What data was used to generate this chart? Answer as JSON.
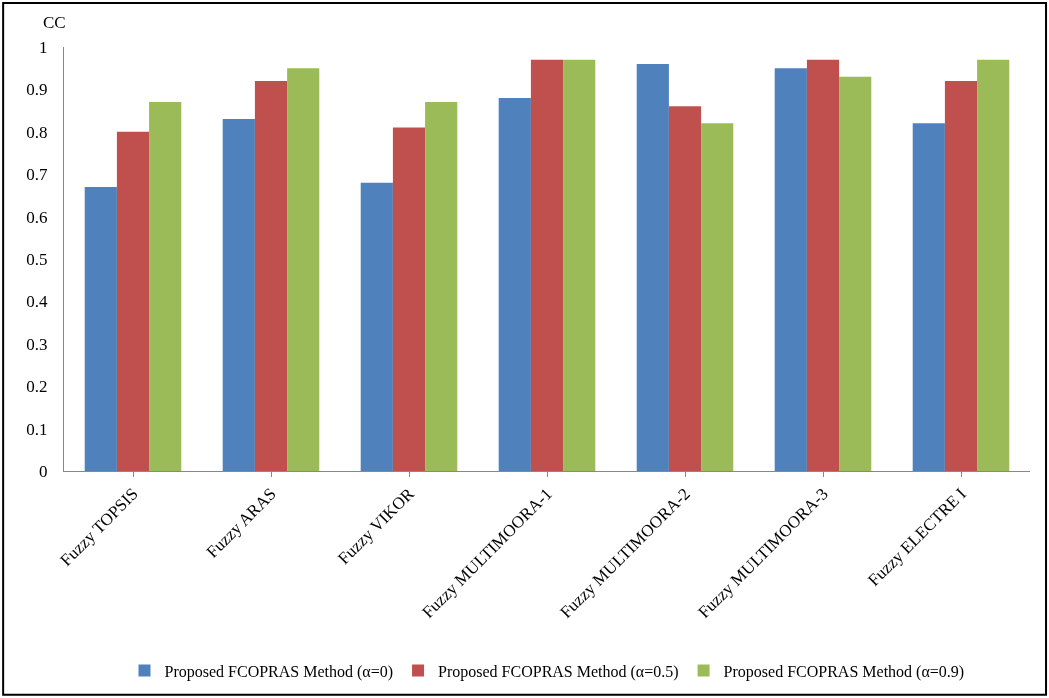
{
  "chart_data": {
    "type": "bar",
    "ylabel": "CC",
    "categories": [
      "Fuzzy TOPSIS",
      "Fuzzy ARAS",
      "Fuzzy VIKOR",
      "Fuzzy MULTIMOORA-1",
      "Fuzzy MULTIMOORA-2",
      "Fuzzy MULTIMOORA-3",
      "Fuzzy ELECTRE I"
    ],
    "series": [
      {
        "name": "Proposed FCOPRAS Method (α=0)",
        "color": "#4f81bd",
        "values": [
          0.67,
          0.83,
          0.68,
          0.88,
          0.96,
          0.95,
          0.82
        ]
      },
      {
        "name": "Proposed FCOPRAS Method (α=0.5)",
        "color": "#c0504d",
        "values": [
          0.8,
          0.92,
          0.81,
          0.97,
          0.86,
          0.97,
          0.92
        ]
      },
      {
        "name": "Proposed FCOPRAS Method (α=0.9)",
        "color": "#9bbb59",
        "values": [
          0.87,
          0.95,
          0.87,
          0.97,
          0.82,
          0.93,
          0.97
        ]
      }
    ],
    "ylim": [
      0,
      1
    ],
    "yticks": [
      0,
      0.1,
      0.2,
      0.3,
      0.4,
      0.5,
      0.6,
      0.7,
      0.8,
      0.9,
      1
    ],
    "legend": "bottom"
  }
}
